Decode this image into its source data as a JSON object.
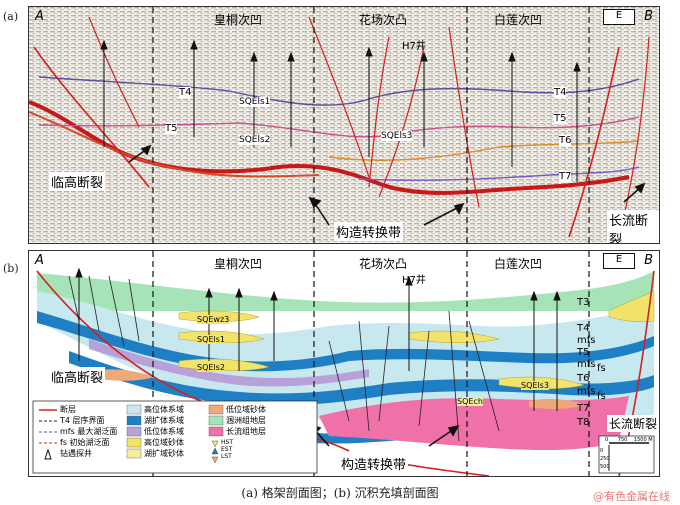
{
  "panel_a": {
    "label": "(a)",
    "corner_left": "A",
    "corner_right": "B",
    "compass": "E",
    "regions": [
      "皇桐次凹",
      "花场次凸",
      "白莲次凹"
    ],
    "well": "H7井",
    "horizons": [
      "T4",
      "T5",
      "T4",
      "T5",
      "T6",
      "T7"
    ],
    "sequence_labels": [
      "SQEls1",
      "SQEls2",
      "SQEls3"
    ],
    "fault_left": "临高断裂",
    "fault_right": "长流断裂",
    "transfer_zone": "构造转换带"
  },
  "panel_b": {
    "label": "(b)",
    "corner_left": "A",
    "corner_right": "B",
    "compass": "E",
    "regions": [
      "皇桐次凹",
      "花场次凸",
      "白莲次凹"
    ],
    "well": "H7井",
    "sequence_labels": [
      "SQEwz3",
      "SQEls1",
      "SQEls2",
      "SQEls3",
      "SQEch"
    ],
    "right_labels": [
      "T3",
      "T4",
      "mfs",
      "T5",
      "mfs",
      "fs",
      "T6",
      "mfs",
      "fs",
      "T7",
      "T8"
    ],
    "fault_left": "临高断裂",
    "fault_right": "长流断裂",
    "transfer_zone": "构造转换带",
    "legend": [
      {
        "text": "断层"
      },
      {
        "text": "层序界面",
        "prefix": "T4"
      },
      {
        "text": "最大湖泛面",
        "prefix": "mfs"
      },
      {
        "text": "初始湖泛面",
        "prefix": "fs"
      },
      {
        "text": "钻遇探井"
      },
      {
        "text": "高位体系域"
      },
      {
        "text": "湖扩体系域"
      },
      {
        "text": "低位体系域"
      },
      {
        "text": "高位域砂体"
      },
      {
        "text": "湖扩域砂体"
      },
      {
        "text": "低位域砂体"
      },
      {
        "text": "涠洲组地层"
      },
      {
        "text": "长流组地层"
      }
    ],
    "system_tract_keys": [
      "HST",
      "EST",
      "LST"
    ],
    "scale": {
      "bar_labels": [
        "0",
        "750",
        "1500"
      ],
      "unit": "M",
      "v_labels": [
        "0",
        "250",
        "500"
      ]
    },
    "colors": {
      "hst": "#c8e8f0",
      "est": "#1f7fc4",
      "lst": "#b7a1d8",
      "hst_sand": "#f2e46a",
      "est_sand": "#f7ed9a",
      "lst_sand": "#f0a77a",
      "weizhou": "#a6e3b6",
      "changliu": "#f070a8",
      "fault": "#d42020"
    }
  },
  "caption": "(a) 格架剖面图；(b) 沉积充填剖面图",
  "watermark": "@有色金属在线"
}
